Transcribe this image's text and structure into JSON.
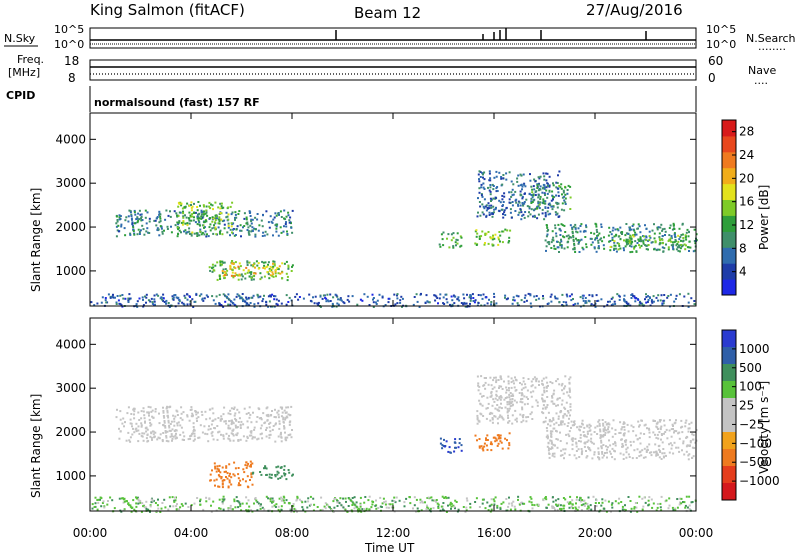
{
  "header": {
    "title": "King Salmon (fitACF)",
    "beam": "Beam 12",
    "date": "27/Aug/2016"
  },
  "status_panels": {
    "nsky_label": "N.Sky",
    "nsearch_label": "N.Search",
    "nsearch_dots": "........",
    "noise_ticks": [
      "10^5",
      "10^0"
    ],
    "freq_label": "Freq.",
    "freq_unit": "[MHz]",
    "freq_ticks": [
      "18",
      "8"
    ],
    "nave_label": "Nave",
    "nave_dots": "....",
    "nave_ticks": [
      "60",
      "0"
    ],
    "cpid_label": "CPID",
    "mode_text": "normalsound (fast) 157 RF"
  },
  "colors": {
    "power_scale": [
      "#1e28e6",
      "#1e3ca8",
      "#2f6cae",
      "#3f8f6a",
      "#2e9e3a",
      "#7ecb28",
      "#e3e21c",
      "#f1ad1a",
      "#ef7a1f",
      "#e8471d",
      "#d81a1a"
    ],
    "velocity_scale": [
      "#2a3bd0",
      "#2f5fa8",
      "#3f8f5c",
      "#58c23a",
      "#c4c4c4",
      "#c4c4c4",
      "#f1a21c",
      "#ee7a1f",
      "#e53d1c",
      "#d4181c"
    ]
  },
  "chart_data": [
    {
      "type": "heatmap",
      "panel": "power",
      "ylabel": "Slant Range [km]",
      "yticks": [
        "1000",
        "2000",
        "3000",
        "4000"
      ],
      "ylim": [
        200,
        4600
      ],
      "xlim": [
        0,
        24
      ],
      "xticks": [
        "00:00",
        "04:00",
        "08:00",
        "12:00",
        "16:00",
        "20:00",
        "00:00"
      ],
      "colorbar": {
        "label": "Power [dB]",
        "ticks": [
          "4",
          "8",
          "12",
          "16",
          "20",
          "24",
          "28"
        ],
        "range": [
          0,
          30
        ]
      },
      "regions": [
        {
          "t0": 1.0,
          "t1": 8.0,
          "r0": 1800,
          "r1": 2400,
          "value": 8
        },
        {
          "t0": 3.4,
          "t1": 5.6,
          "r0": 1850,
          "r1": 2600,
          "value": 14
        },
        {
          "t0": 4.7,
          "t1": 8.0,
          "r0": 800,
          "r1": 1250,
          "value": 12
        },
        {
          "t0": 5.2,
          "t1": 7.6,
          "r0": 900,
          "r1": 1200,
          "value": 20
        },
        {
          "t0": 13.8,
          "t1": 14.7,
          "r0": 1550,
          "r1": 1900,
          "value": 12
        },
        {
          "t0": 15.2,
          "t1": 16.6,
          "r0": 1600,
          "r1": 2000,
          "value": 14
        },
        {
          "t0": 15.3,
          "t1": 18.6,
          "r0": 2200,
          "r1": 3300,
          "value": 6
        },
        {
          "t0": 17.4,
          "t1": 19.0,
          "r0": 2400,
          "r1": 3000,
          "value": 10
        },
        {
          "t0": 18.0,
          "t1": 24.0,
          "r0": 1450,
          "r1": 2100,
          "value": 9
        },
        {
          "t0": 20.5,
          "t1": 24.0,
          "r0": 1500,
          "r1": 1850,
          "value": 13
        },
        {
          "t0": 0.0,
          "t1": 24.0,
          "r0": 200,
          "r1": 500,
          "value": 5
        }
      ]
    },
    {
      "type": "heatmap",
      "panel": "velocity",
      "ylabel": "Slant Range [km]",
      "yticks": [
        "1000",
        "2000",
        "3000",
        "4000"
      ],
      "ylim": [
        200,
        4600
      ],
      "xlim": [
        0,
        24
      ],
      "xticks": [
        "00:00",
        "04:00",
        "08:00",
        "12:00",
        "16:00",
        "20:00",
        "00:00"
      ],
      "xlabel": "Time UT",
      "colorbar": {
        "label": "Velocity [m s⁻¹]",
        "ticks": [
          "1000",
          "500",
          "100",
          "25",
          "−25",
          "−100",
          "−500",
          "−1000"
        ]
      },
      "regions": [
        {
          "t0": 1.0,
          "t1": 8.0,
          "r0": 1800,
          "r1": 2600,
          "value": 0
        },
        {
          "t0": 4.7,
          "t1": 6.4,
          "r0": 750,
          "r1": 1350,
          "value": -300
        },
        {
          "t0": 6.4,
          "t1": 8.0,
          "r0": 950,
          "r1": 1250,
          "value": 150
        },
        {
          "t0": 13.8,
          "t1": 14.7,
          "r0": 1550,
          "r1": 1900,
          "value": 600
        },
        {
          "t0": 15.2,
          "t1": 16.6,
          "r0": 1600,
          "r1": 2000,
          "value": -200
        },
        {
          "t0": 15.3,
          "t1": 19.0,
          "r0": 2200,
          "r1": 3300,
          "value": 0
        },
        {
          "t0": 18.0,
          "t1": 24.0,
          "r0": 1400,
          "r1": 2300,
          "value": 0
        },
        {
          "t0": 0.0,
          "t1": 24.0,
          "r0": 200,
          "r1": 550,
          "value": 40
        }
      ]
    }
  ]
}
